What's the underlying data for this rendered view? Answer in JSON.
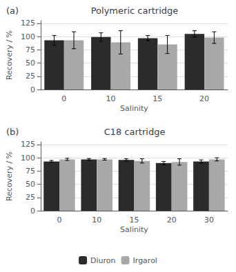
{
  "chart_data": [
    {
      "type": "bar",
      "title": "Polymeric cartridge",
      "annotation": "(a)",
      "categories": [
        "0",
        "10",
        "15",
        "20"
      ],
      "series": [
        {
          "name": "Diuron",
          "color": "#2b2b2b",
          "values": [
            93,
            99,
            97,
            105
          ],
          "errors": [
            9,
            8,
            5,
            6
          ]
        },
        {
          "name": "Irgarol",
          "color": "#a8a8a8",
          "values": [
            93,
            89,
            85,
            98
          ],
          "errors": [
            16,
            22,
            17,
            11
          ]
        }
      ],
      "xlabel": "Salinity",
      "ylabel": "Recovery / %",
      "ylim": [
        0,
        130
      ],
      "yticks": [
        0,
        25,
        50,
        75,
        100,
        125
      ],
      "grid": true
    },
    {
      "type": "bar",
      "title": "C18 cartridge",
      "annotation": "(b)",
      "categories": [
        "0",
        "10",
        "15",
        "20",
        "30"
      ],
      "series": [
        {
          "name": "Diuron",
          "color": "#2b2b2b",
          "values": [
            93,
            97,
            96,
            90,
            93
          ],
          "errors": [
            2,
            1.5,
            2,
            3,
            3
          ]
        },
        {
          "name": "Irgarol",
          "color": "#a8a8a8",
          "values": [
            97,
            97,
            94,
            92,
            97
          ],
          "errors": [
            2,
            1.5,
            4,
            6,
            3
          ]
        }
      ],
      "xlabel": "Salinity",
      "ylabel": "Recovery / %",
      "ylim": [
        0,
        130
      ],
      "yticks": [
        0,
        25,
        50,
        75,
        100,
        125
      ],
      "grid": true,
      "legend": "bottom"
    }
  ]
}
